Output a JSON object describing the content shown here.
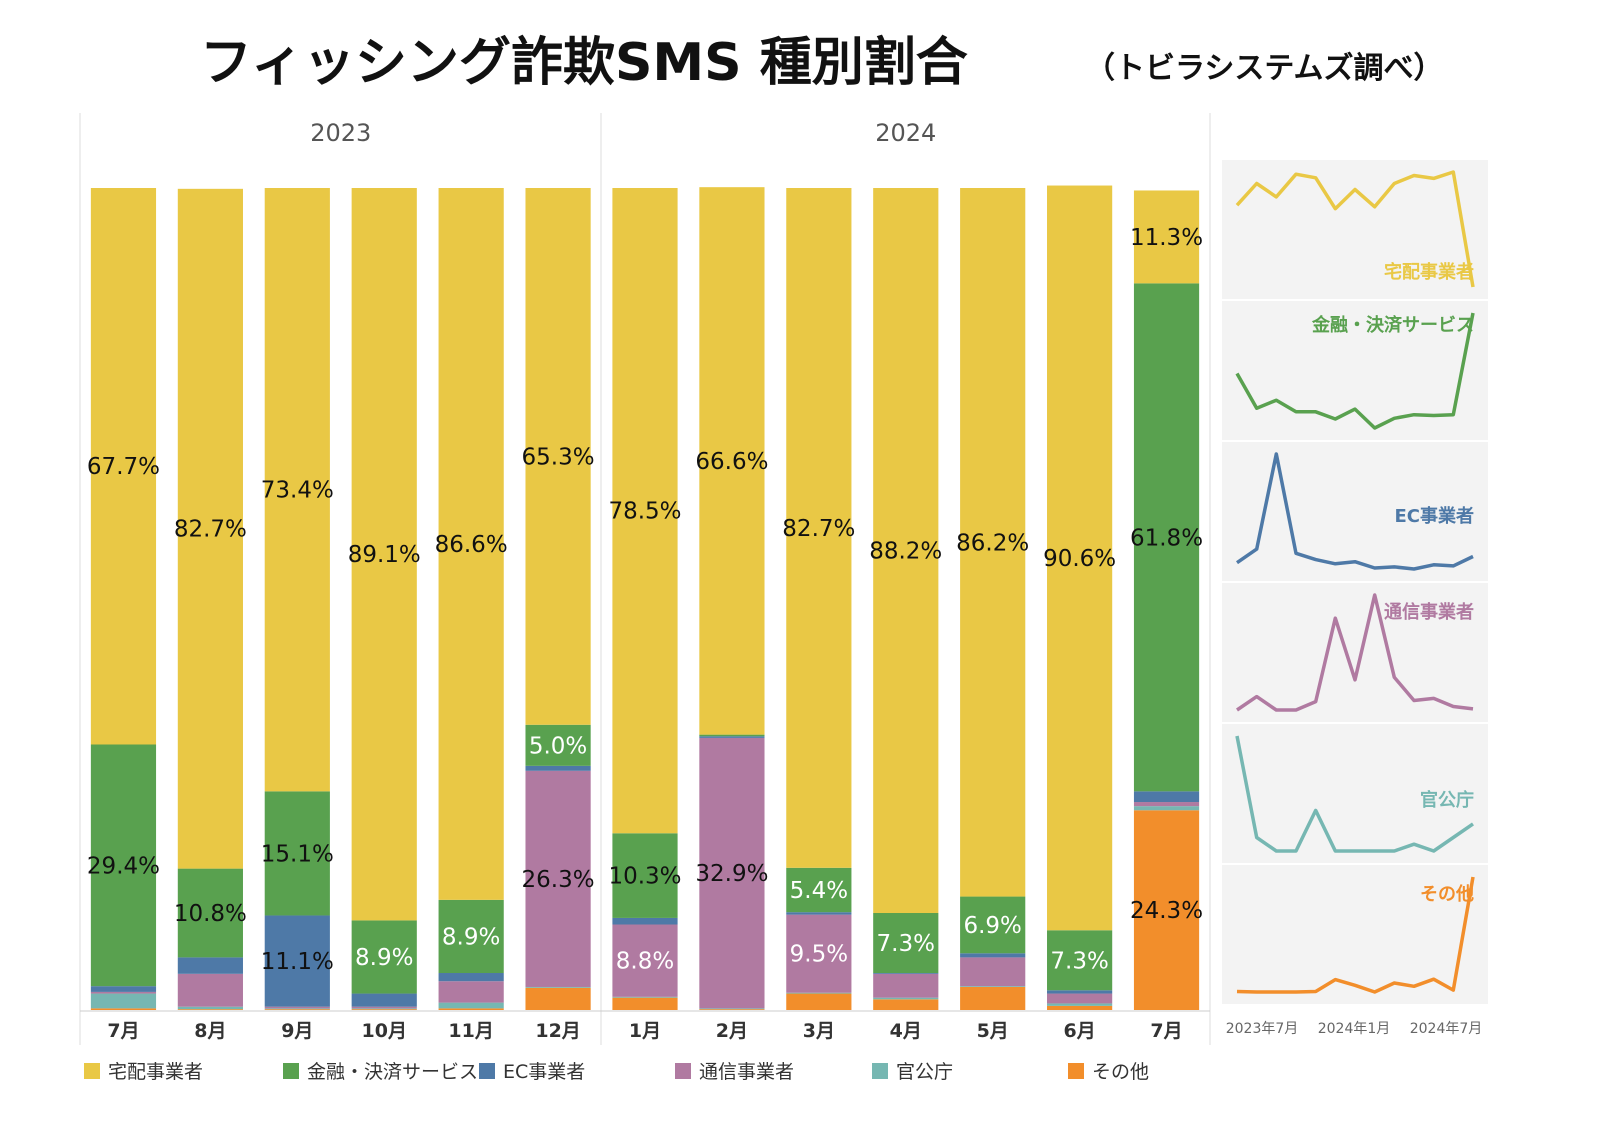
{
  "title": "フィッシング詐欺SMS 種別割合",
  "subtitle": "（トビラシステムズ調べ）",
  "colors": {
    "宅配事業者": "#E9C845",
    "金融・決済サービス": "#59A14F",
    "EC事業者": "#4E79A7",
    "通信事業者": "#B07AA1",
    "官公庁": "#76B7B2",
    "その他": "#F28E2B"
  },
  "chart_data": {
    "type": "bar",
    "stacked": true,
    "normalized": true,
    "years": [
      {
        "label": "2023",
        "count": 6
      },
      {
        "label": "2024",
        "count": 7
      }
    ],
    "categories": [
      "7月",
      "8月",
      "9月",
      "10月",
      "11月",
      "12月",
      "1月",
      "2月",
      "3月",
      "4月",
      "5月",
      "6月",
      "7月"
    ],
    "series": [
      {
        "name": "その他",
        "values": [
          0.2,
          0.1,
          0.1,
          0.1,
          0.2,
          2.7,
          1.5,
          0.1,
          2.0,
          1.3,
          2.8,
          0.5,
          24.3
        ]
      },
      {
        "name": "官公庁",
        "values": [
          1.8,
          0.3,
          0.1,
          0.1,
          0.7,
          0.1,
          0.1,
          0.1,
          0.1,
          0.2,
          0.1,
          0.3,
          0.5
        ]
      },
      {
        "name": "通信事業者",
        "values": [
          0.2,
          4.0,
          0.2,
          0.2,
          2.6,
          26.3,
          8.8,
          32.9,
          9.5,
          2.9,
          3.5,
          1.2,
          0.5
        ]
      },
      {
        "name": "EC事業者",
        "values": [
          0.7,
          2.0,
          11.1,
          1.6,
          1.0,
          0.6,
          0.8,
          0.2,
          0.3,
          0.1,
          0.5,
          0.4,
          1.3
        ]
      },
      {
        "name": "金融・決済サービス",
        "values": [
          29.4,
          10.8,
          15.1,
          8.9,
          8.9,
          5.0,
          10.3,
          0.2,
          5.4,
          7.3,
          6.9,
          7.3,
          61.8
        ]
      },
      {
        "name": "宅配事業者",
        "values": [
          67.7,
          82.7,
          73.4,
          89.1,
          86.6,
          65.3,
          78.5,
          66.6,
          82.7,
          88.2,
          86.2,
          90.6,
          11.3
        ]
      }
    ],
    "labels": [
      {
        "series": "宅配事業者",
        "values": [
          "67.7%",
          "82.7%",
          "73.4%",
          "89.1%",
          "86.6%",
          "65.3%",
          "78.5%",
          "66.6%",
          "82.7%",
          "88.2%",
          "86.2%",
          "90.6%",
          "11.3%"
        ]
      },
      {
        "series": "金融・決済サービス",
        "values": [
          "29.4%",
          "10.8%",
          "15.1%",
          "8.9%",
          "8.9%",
          "5.0%",
          "10.3%",
          "",
          "5.4%",
          "7.3%",
          "6.9%",
          "7.3%",
          "61.8%"
        ]
      },
      {
        "series": "EC事業者",
        "values": [
          "",
          "",
          "11.1%",
          "",
          "",
          "",
          "",
          "",
          "",
          "",
          "",
          "",
          ""
        ]
      },
      {
        "series": "通信事業者",
        "values": [
          "",
          "",
          "",
          "",
          "",
          "26.3%",
          "8.8%",
          "32.9%",
          "9.5%",
          "",
          "",
          "",
          ""
        ]
      },
      {
        "series": "その他",
        "values": [
          "",
          "",
          "",
          "",
          "",
          "",
          "",
          "",
          "",
          "",
          "",
          "",
          "24.3%"
        ]
      }
    ],
    "ylim": [
      0,
      100
    ],
    "legend": [
      "宅配事業者",
      "金融・決済サービス",
      "EC事業者",
      "通信事業者",
      "官公庁",
      "その他"
    ]
  },
  "sparklines": {
    "panels": [
      "宅配事業者",
      "金融・決済サービス",
      "EC事業者",
      "通信事業者",
      "官公庁",
      "その他"
    ],
    "axis_labels": [
      "2023年7月",
      "2024年1月",
      "2024年7月"
    ]
  }
}
